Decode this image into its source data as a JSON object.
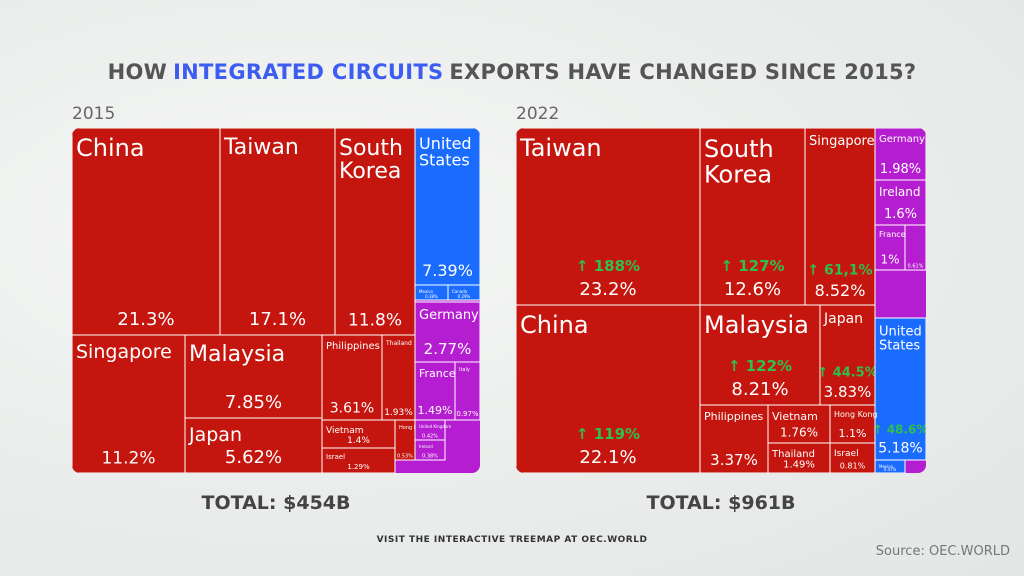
{
  "title_parts": [
    "HOW",
    "INTEGRATED CIRCUITS",
    "EXPORTS HAVE CHANGED SINCE 2015?"
  ],
  "footer": "VISIT THE INTERACTIVE TREEMAP AT OEC.WORLD",
  "source": "Source: OEC.WORLD",
  "chart_data": [
    {
      "type": "treemap",
      "title": "2015",
      "total": "TOTAL: $454B",
      "categories": [
        "China",
        "Taiwan",
        "South Korea",
        "United States",
        "Mexico",
        "Canada",
        "Singapore",
        "Malaysia",
        "Japan",
        "Philippines",
        "Thailand",
        "Vietnam",
        "Israel",
        "Hong Kong",
        "Germany",
        "France",
        "Italy",
        "United Kingdom",
        "Ireland"
      ],
      "values": [
        21.3,
        17.1,
        11.8,
        7.39,
        0.38,
        0.29,
        11.2,
        7.85,
        5.62,
        3.61,
        1.93,
        1.4,
        1.29,
        0.53,
        2.77,
        1.49,
        0.97,
        0.42,
        0.38
      ],
      "value_labels": [
        "21.3%",
        "17.1%",
        "11.8%",
        "7.39%",
        "0.38%",
        "0.29%",
        "11.2%",
        "7.85%",
        "5.62%",
        "3.61%",
        "1.93%",
        "1.4%",
        "1.29%",
        "0.53%",
        "2.77%",
        "1.49%",
        "0.97%",
        "0.42%",
        "0.38%"
      ],
      "colors": [
        "#c4160e",
        "#c4160e",
        "#c4160e",
        "#1a6cff",
        "#1a6cff",
        "#1a6cff",
        "#c4160e",
        "#c4160e",
        "#c4160e",
        "#c4160e",
        "#c4160e",
        "#c4160e",
        "#c4160e",
        "#c4160e",
        "#b51ed0",
        "#b51ed0",
        "#b51ed0",
        "#b51ed0",
        "#b51ed0"
      ]
    },
    {
      "type": "treemap",
      "title": "2022",
      "total": "TOTAL: $961B",
      "categories": [
        "Taiwan",
        "South Korea",
        "Singapore",
        "Germany",
        "Ireland",
        "France",
        null,
        "China",
        "Malaysia",
        "Japan",
        "United States",
        "Mexico",
        "Philippines",
        "Vietnam",
        "Thailand",
        "Hong Kong",
        "Israel"
      ],
      "values": [
        23.2,
        12.6,
        8.52,
        1.98,
        1.6,
        1,
        0.61,
        22.1,
        8.21,
        3.83,
        5.18,
        0.47,
        3.37,
        1.76,
        1.49,
        1.1,
        0.81
      ],
      "value_labels": [
        "23.2%",
        "12.6%",
        "8.52%",
        "1.98%",
        "1.6%",
        "1%",
        "0.61%",
        "22.1%",
        "8.21%",
        "3.83%",
        "5.18%",
        "0.47%",
        "3.37%",
        "1.76%",
        "1.49%",
        "1.1%",
        "0.81%"
      ],
      "changes": [
        "↑ 188%",
        "↑ 127%",
        "↑ 61,1%",
        null,
        null,
        null,
        null,
        "↑ 119%",
        "↑ 122%",
        "↑ 44.5%",
        "↑ 48.6%",
        null,
        null,
        null,
        null,
        null,
        null
      ],
      "colors": [
        "#c4160e",
        "#c4160e",
        "#c4160e",
        "#b51ed0",
        "#b51ed0",
        "#b51ed0",
        "#b51ed0",
        "#c4160e",
        "#c4160e",
        "#c4160e",
        "#1a6cff",
        "#1a6cff",
        "#c4160e",
        "#c4160e",
        "#c4160e",
        "#c4160e",
        "#c4160e"
      ]
    }
  ]
}
